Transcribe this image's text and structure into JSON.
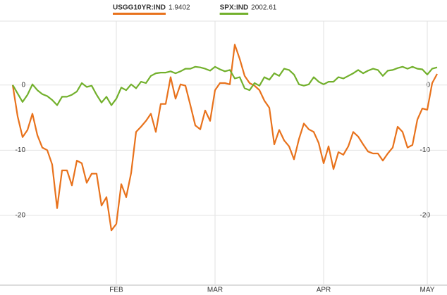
{
  "chart_data": {
    "type": "line",
    "categories": [
      null,
      null,
      null,
      null,
      null,
      null,
      null,
      null,
      null,
      null,
      null,
      null,
      null,
      null,
      null,
      null,
      null,
      null,
      null,
      null,
      null,
      "FEB",
      null,
      null,
      null,
      null,
      null,
      null,
      null,
      null,
      null,
      null,
      null,
      null,
      null,
      null,
      null,
      null,
      null,
      null,
      null,
      "MAR",
      null,
      null,
      null,
      null,
      null,
      null,
      null,
      null,
      null,
      null,
      null,
      null,
      null,
      null,
      null,
      null,
      null,
      null,
      null,
      null,
      null,
      "APR",
      null,
      null,
      null,
      null,
      null,
      null,
      null,
      null,
      null,
      null,
      null,
      null,
      null,
      null,
      null,
      null,
      null,
      null,
      null,
      null,
      "MAY",
      null,
      null
    ],
    "series": [
      {
        "name": "USGG10YR:IND",
        "last": 1.9402,
        "color": "#e8721c",
        "values": [
          0,
          -4.8,
          -8,
          -6.9,
          -4.4,
          -7.7,
          -9.6,
          -10,
          -12.2,
          -18.9,
          -13.1,
          -13.1,
          -15.4,
          -11.6,
          -12,
          -15,
          -13.6,
          -13.6,
          -18.5,
          -17.2,
          -22.3,
          -21.3,
          -15.2,
          -17.2,
          -13.5,
          -7.2,
          -6.4,
          -5.5,
          -4.4,
          -7.2,
          -2.9,
          -2.9,
          1.2,
          -2.1,
          0.1,
          -0.1,
          -3.1,
          -6.2,
          -6.8,
          -3.9,
          -5.5,
          -0.8,
          0.3,
          0.3,
          0.1,
          6.2,
          4,
          1.4,
          0.3,
          -0.1,
          -0.8,
          -2.4,
          -3.5,
          -9.1,
          -6.9,
          -8.5,
          -9.4,
          -11.4,
          -8.3,
          -5.9,
          -6.8,
          -7.2,
          -8.9,
          -12,
          -9.4,
          -12.9,
          -10.3,
          -10.7,
          -9.4,
          -7.2,
          -7.9,
          -9.1,
          -10.2,
          -10.5,
          -10.5,
          -11.6,
          -10.5,
          -9.6,
          -6.4,
          -7.2,
          -9.6,
          -9.2,
          -5.3,
          -3.6,
          -3.8,
          0.3,
          1.7
        ]
      },
      {
        "name": "SPX:IND",
        "last": 2002.61,
        "color": "#72b02c",
        "values": [
          0,
          -1.3,
          -2.6,
          -1.5,
          0.1,
          -0.8,
          -1.4,
          -1.7,
          -2.3,
          -3.1,
          -1.8,
          -1.8,
          -1.5,
          -1,
          0.3,
          -0.3,
          -0.1,
          -1.5,
          -2.7,
          -1.8,
          -3.1,
          -2.1,
          -0.4,
          -0.8,
          0.1,
          -0.5,
          0.5,
          0.3,
          1.4,
          1.8,
          1.9,
          1.9,
          2.1,
          1.8,
          2.1,
          2.5,
          2.5,
          2.8,
          2.7,
          2.5,
          2.2,
          2.8,
          2.4,
          2.1,
          2.3,
          1,
          1.2,
          -0.5,
          -0.8,
          0.3,
          -0.1,
          1.2,
          0.8,
          1.8,
          1.4,
          2.5,
          2.3,
          1.6,
          0.1,
          -0.1,
          0.1,
          1.2,
          0.5,
          0.1,
          0.5,
          0.5,
          1.2,
          1,
          1.4,
          1.8,
          2.3,
          1.8,
          2.2,
          2.5,
          2.3,
          1.4,
          2.2,
          2.3,
          2.6,
          2.8,
          2.5,
          2.8,
          2.5,
          2.4,
          1.6,
          2.5,
          2.7
        ]
      }
    ],
    "ylim": [
      -30.7,
      9.8
    ],
    "yticks": [
      0,
      -10,
      -20
    ],
    "grid": true
  }
}
